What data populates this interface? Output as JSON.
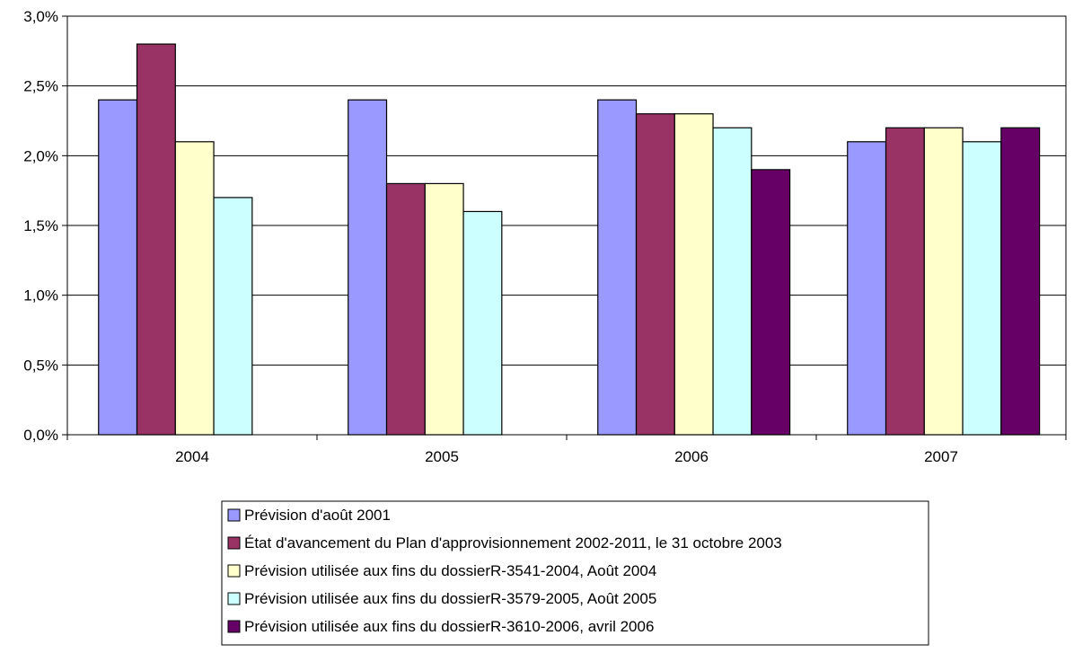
{
  "chart_data": {
    "type": "bar",
    "title": "",
    "xlabel": "",
    "ylabel": "",
    "categories": [
      "2004",
      "2005",
      "2006",
      "2007"
    ],
    "ylim": [
      0,
      3.0
    ],
    "y_ticks": [
      0,
      0.5,
      1.0,
      1.5,
      2.0,
      2.5,
      3.0
    ],
    "y_tick_labels": [
      "0,0%",
      "0,5%",
      "1,0%",
      "1,5%",
      "2,0%",
      "2,5%",
      "3,0%"
    ],
    "grid": true,
    "legend_position": "bottom-center",
    "series": [
      {
        "name": "Prévision d'août 2001",
        "color": "#9999ff",
        "values": [
          2.4,
          2.4,
          2.4,
          2.1
        ]
      },
      {
        "name": "État d'avancement du Plan d'approvisionnement 2002-2011, le 31 octobre 2003",
        "color": "#993366",
        "values": [
          2.8,
          1.8,
          2.3,
          2.2
        ]
      },
      {
        "name": "Prévision utilisée aux fins du dossierR-3541-2004, Août 2004",
        "color": "#ffffcc",
        "values": [
          2.1,
          1.8,
          2.3,
          2.2
        ]
      },
      {
        "name": "Prévision utilisée aux fins du dossierR-3579-2005, Août 2005",
        "color": "#ccffff",
        "values": [
          1.7,
          1.6,
          2.2,
          2.1
        ]
      },
      {
        "name": "Prévision utilisée aux fins du dossierR-3610-2006, avril 2006",
        "color": "#660066",
        "values": [
          null,
          null,
          1.9,
          2.2
        ]
      }
    ]
  }
}
